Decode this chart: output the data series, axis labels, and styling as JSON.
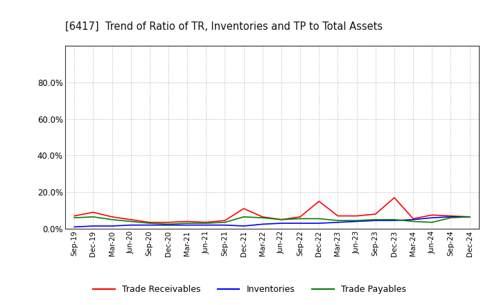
{
  "title": "[6417]  Trend of Ratio of TR, Inventories and TP to Total Assets",
  "x_labels": [
    "Sep-19",
    "Dec-19",
    "Mar-20",
    "Jun-20",
    "Sep-20",
    "Dec-20",
    "Mar-21",
    "Jun-21",
    "Sep-21",
    "Dec-21",
    "Mar-22",
    "Jun-22",
    "Sep-22",
    "Dec-22",
    "Mar-23",
    "Jun-23",
    "Sep-23",
    "Dec-23",
    "Mar-24",
    "Jun-24",
    "Sep-24",
    "Dec-24"
  ],
  "trade_receivables": [
    7.0,
    9.0,
    6.5,
    5.0,
    3.5,
    3.5,
    4.0,
    3.5,
    4.5,
    11.0,
    6.5,
    5.0,
    6.5,
    15.0,
    7.0,
    7.0,
    8.0,
    17.0,
    5.5,
    7.5,
    7.0,
    6.5
  ],
  "inventories": [
    1.0,
    1.5,
    1.5,
    2.0,
    2.0,
    2.0,
    2.0,
    2.0,
    2.0,
    1.5,
    2.5,
    3.0,
    3.0,
    3.0,
    3.5,
    4.0,
    4.5,
    4.5,
    5.0,
    6.0,
    6.5,
    6.5
  ],
  "trade_payables": [
    6.0,
    6.5,
    5.0,
    4.0,
    3.0,
    2.5,
    3.0,
    3.0,
    3.5,
    6.5,
    6.0,
    5.0,
    5.5,
    5.5,
    4.5,
    4.5,
    5.0,
    5.0,
    4.0,
    3.5,
    6.0,
    6.5
  ],
  "ylim": [
    0,
    100
  ],
  "yticks": [
    0,
    20,
    40,
    60,
    80
  ],
  "ytick_labels": [
    "0.0%",
    "20.0%",
    "40.0%",
    "60.0%",
    "80.0%"
  ],
  "color_tr": "#ff0000",
  "color_inv": "#0000ff",
  "color_tp": "#008000",
  "legend_labels": [
    "Trade Receivables",
    "Inventories",
    "Trade Payables"
  ],
  "bg_color": "#ffffff",
  "grid_color": "#b0b0b0"
}
